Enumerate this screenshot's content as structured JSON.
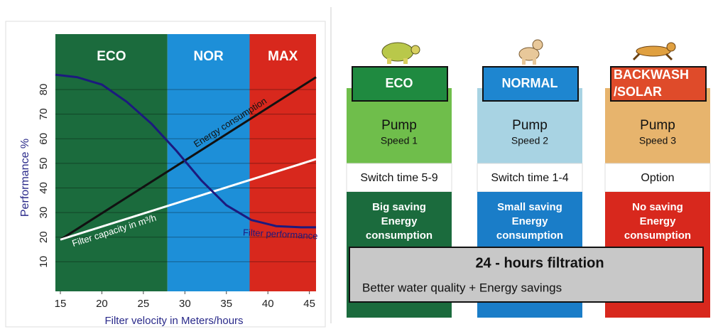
{
  "chart_data": {
    "type": "line",
    "xlabel": "Filter velocity in Meters/hours",
    "ylabel": "Performance %",
    "xlim": [
      14.4,
      45.8
    ],
    "ylim": [
      -2,
      102.5
    ],
    "xticks": [
      15,
      20,
      25,
      30,
      35,
      40,
      45
    ],
    "yticks": [
      10,
      20,
      30,
      40,
      50,
      60,
      70,
      80
    ],
    "zones": [
      {
        "label": "ECO",
        "from": 14.4,
        "to": 27.9,
        "color": "#1b6b3d"
      },
      {
        "label": "NOR",
        "from": 27.9,
        "to": 37.8,
        "color": "#1d8fd8"
      },
      {
        "label": "MAX",
        "from": 37.8,
        "to": 45.8,
        "color": "#d8281d"
      }
    ],
    "series": [
      {
        "name": "Energy consumption",
        "color": "#111111",
        "x": [
          15,
          45.8
        ],
        "values": [
          19,
          85
        ]
      },
      {
        "name": "Filter capacity in m³/h",
        "color": "#ffffff",
        "x": [
          15,
          45.8
        ],
        "values": [
          19,
          51.7
        ]
      },
      {
        "name": "Filter performance",
        "color": "#1c1a7e",
        "x": [
          14.4,
          17,
          20,
          23,
          26,
          29,
          32,
          35,
          38,
          41,
          44,
          45.8
        ],
        "values": [
          86,
          85,
          82,
          75,
          66,
          55,
          43,
          33,
          27,
          24.5,
          24,
          24
        ]
      }
    ]
  },
  "panel": {
    "columns": [
      {
        "title": [
          "ECO"
        ],
        "pump": "Pump",
        "speed": "Speed 1",
        "switch": "Switch time 5-9",
        "saving": [
          "Big saving",
          "Energy",
          "consumption"
        ]
      },
      {
        "title": [
          "NORMAL"
        ],
        "pump": "Pump",
        "speed": "Speed 2",
        "switch": "Switch time 1-4",
        "saving": [
          "Small saving",
          "Energy",
          "consumption"
        ]
      },
      {
        "title": [
          "BACKWASH",
          "/SOLAR"
        ],
        "pump": "Pump",
        "speed": "Speed 3",
        "switch": "Option",
        "saving": [
          "No saving",
          "Energy",
          "consumption"
        ]
      }
    ],
    "summary": {
      "title": "24 - hours filtration",
      "text": "Better water quality + Energy savings"
    }
  }
}
